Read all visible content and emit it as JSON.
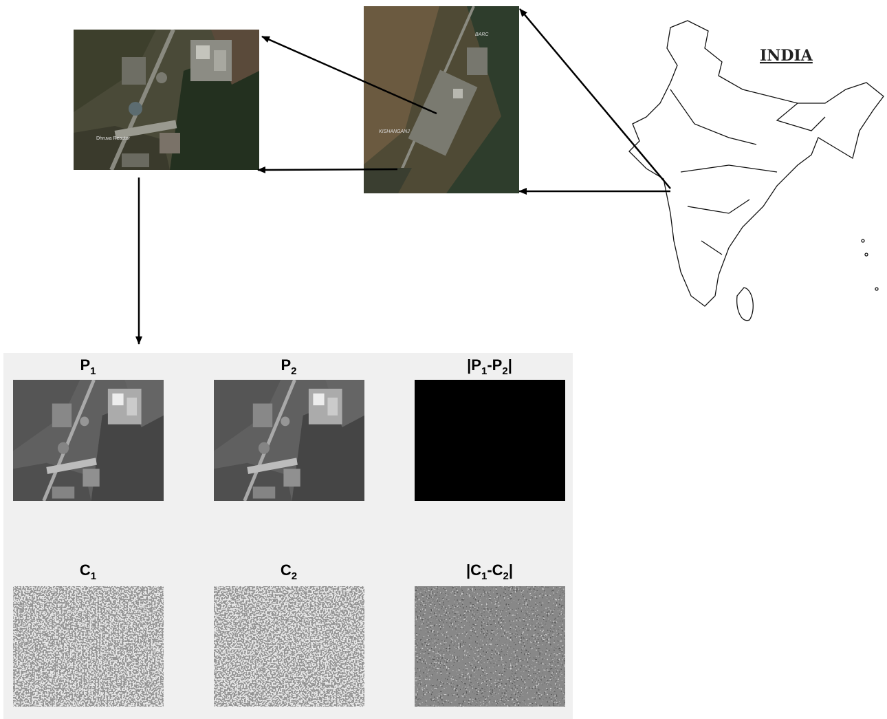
{
  "map": {
    "title": "INDIA"
  },
  "zoom_image": {
    "labels": [
      "BARC",
      "KISHANGANJ"
    ]
  },
  "site_image": {
    "label": "Dhruva Reactor"
  },
  "panels": [
    {
      "title": [
        {
          "text": "P"
        },
        {
          "sub": "1"
        }
      ]
    },
    {
      "title": [
        {
          "text": "P"
        },
        {
          "sub": "2"
        }
      ]
    },
    {
      "title": [
        {
          "text": "|P"
        },
        {
          "sub": "1"
        },
        {
          "text": "-P"
        },
        {
          "sub": "2"
        },
        {
          "text": "|"
        }
      ]
    },
    {
      "title": [
        {
          "text": "C"
        },
        {
          "sub": "1"
        }
      ]
    },
    {
      "title": [
        {
          "text": "C"
        },
        {
          "sub": "2"
        }
      ]
    },
    {
      "title": [
        {
          "text": "|C"
        },
        {
          "sub": "1"
        },
        {
          "text": "-C"
        },
        {
          "sub": "2"
        },
        {
          "text": "|"
        }
      ]
    }
  ]
}
